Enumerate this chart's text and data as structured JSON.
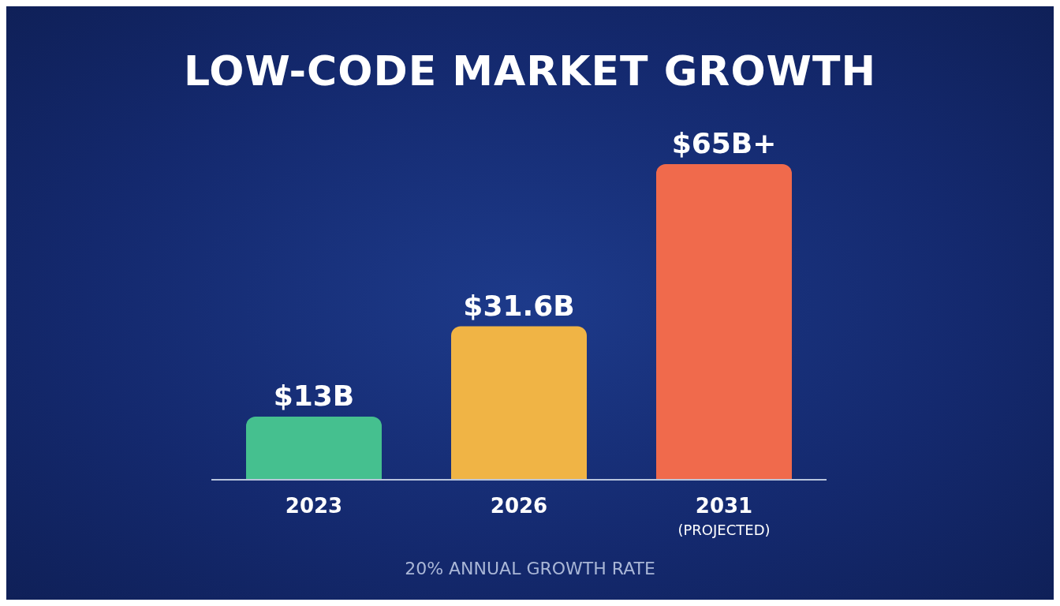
{
  "chart_data": {
    "type": "bar",
    "title": "LOW-CODE MARKET GROWTH",
    "categories": [
      "2023",
      "2026",
      "2031\n(PROJECTED)"
    ],
    "values": [
      13,
      31.6,
      65
    ],
    "value_labels": [
      "$13B",
      "$31.6B",
      "$65B+"
    ],
    "colors": [
      "#45c08f",
      "#f0b445",
      "#f06a4c"
    ],
    "annotations": [
      "20% ANNUAL GROWTH RATE"
    ],
    "grid": false,
    "legend": false
  }
}
